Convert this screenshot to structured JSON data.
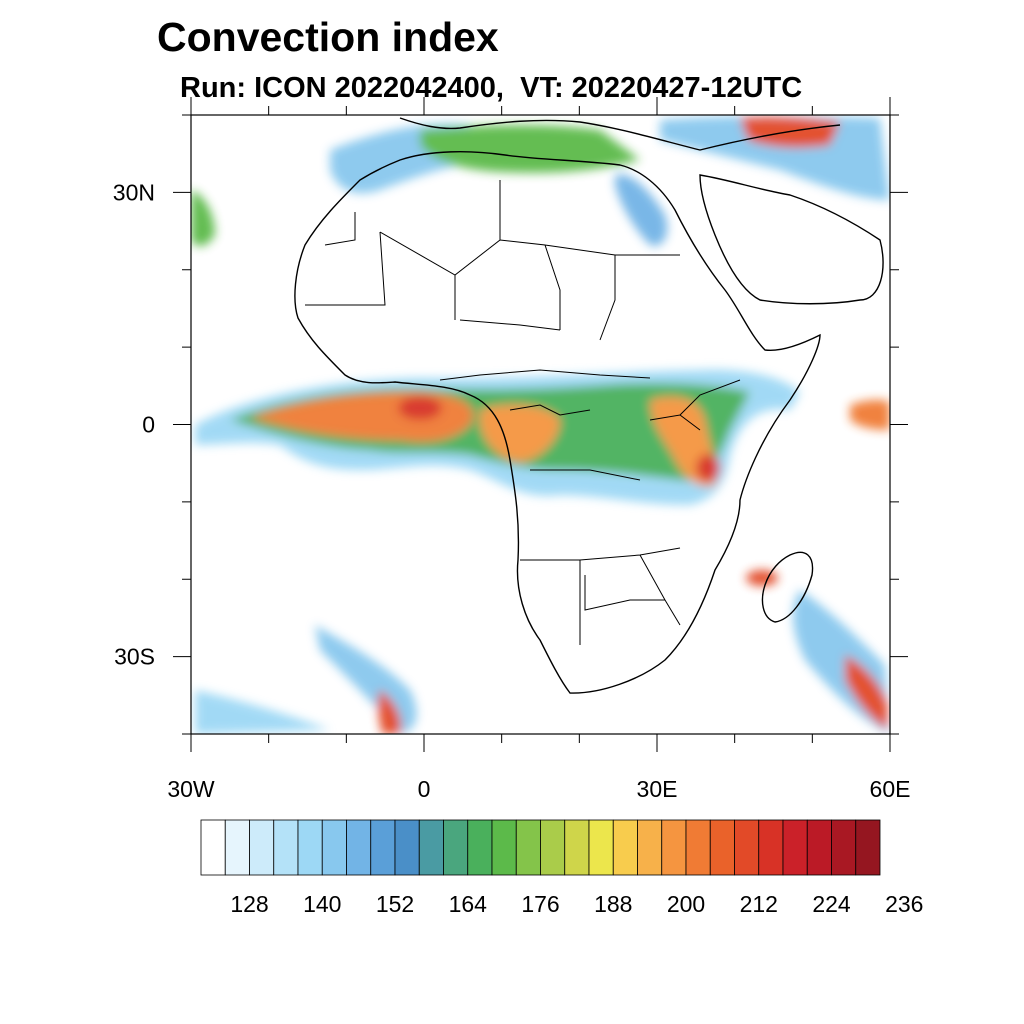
{
  "title": "Convection index",
  "subtitle": "Run: ICON 2022042400,  VT: 20220427-12UTC",
  "map": {
    "extent": {
      "lon_min": -30,
      "lon_max": 60,
      "lat_min": -40,
      "lat_max": 40
    },
    "lat_labels": [
      "30N",
      "0",
      "30S"
    ],
    "lon_labels": [
      "30W",
      "0",
      "30E",
      "60E"
    ]
  },
  "colorbar": {
    "colors": [
      "#ffffff",
      "#e6f5fd",
      "#cdebfa",
      "#b4e2f8",
      "#9dd8f5",
      "#88c8ee",
      "#72b4e6",
      "#5a9fd8",
      "#4a8fc8",
      "#4a9ba3",
      "#4aa67e",
      "#4ab05c",
      "#5cba4a",
      "#84c44a",
      "#aacc4a",
      "#cfd54a",
      "#ece64c",
      "#f8cc4d",
      "#f7b14a",
      "#f59540",
      "#f07b34",
      "#ea622a",
      "#e24a28",
      "#d83226",
      "#cb2129",
      "#bb1a26",
      "#a91823",
      "#951620"
    ],
    "labels": [
      "128",
      "140",
      "152",
      "164",
      "176",
      "188",
      "200",
      "212",
      "224",
      "236"
    ]
  }
}
